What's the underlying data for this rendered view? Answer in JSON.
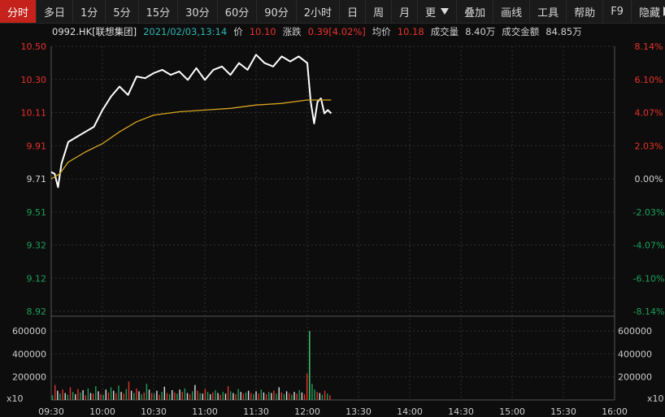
{
  "toolbar": {
    "tabs": [
      "分时",
      "多日",
      "1分",
      "5分",
      "15分",
      "30分",
      "60分",
      "90分",
      "2小时",
      "日",
      "周",
      "月",
      "更",
      "叠加",
      "画线",
      "工具",
      "帮助",
      "F9",
      "隐藏"
    ],
    "active_index": 0
  },
  "info": {
    "code": "0992.HK[联想集团]",
    "datetime": "2021/02/03,13:14",
    "price_label": "价",
    "price_value": "10.10",
    "change_label": "涨跌",
    "change_value": "0.39[4.02%]",
    "avg_label": "均价",
    "avg_value": "10.18",
    "volume_label": "成交量",
    "volume_value": "8.40万",
    "turnover_label": "成交金额",
    "turnover_value": "84.85万"
  },
  "colors": {
    "up": "#e8322a",
    "down": "#1aa05a",
    "price_line": "#ffffff",
    "avg_line": "#d8a521",
    "grid": "#2e2e2e",
    "axis_text": "#cccccc",
    "spike": "#3ccf7a"
  },
  "chart_data": [
    {
      "type": "line",
      "title": "",
      "prev_close": 9.71,
      "ylim": [
        8.92,
        10.5
      ],
      "y_ticks_left": [
        "10.50",
        "10.30",
        "10.11",
        "9.91",
        "9.71",
        "9.51",
        "9.32",
        "9.12",
        "8.92"
      ],
      "y_ticks_right": [
        "8.14%",
        "6.10%",
        "4.07%",
        "2.03%",
        "0.00%",
        "-2.03%",
        "-4.07%",
        "-6.10%",
        "-8.14%"
      ],
      "x_ticks": [
        "09:30",
        "10:00",
        "10:30",
        "11:00",
        "11:30",
        "12:00",
        "13:30",
        "14:00",
        "14:30",
        "15:00",
        "15:30",
        "16:00"
      ],
      "grid": true,
      "series": [
        {
          "name": "",
          "x": [
            "09:30",
            "09:32",
            "09:34",
            "09:36",
            "09:40",
            "09:45",
            "09:50",
            "09:55",
            "10:00",
            "10:05",
            "10:10",
            "10:15",
            "10:20",
            "10:25",
            "10:30",
            "10:35",
            "10:40",
            "10:45",
            "10:50",
            "10:55",
            "11:00",
            "11:05",
            "11:10",
            "11:15",
            "11:20",
            "11:25",
            "11:30",
            "11:35",
            "11:40",
            "11:45",
            "11:50",
            "11:55",
            "12:00",
            "12:02",
            "12:04",
            "12:06",
            "12:08",
            "12:10",
            "12:12",
            "12:14"
          ],
          "values": [
            9.75,
            9.74,
            9.66,
            9.8,
            9.93,
            9.96,
            9.99,
            10.02,
            10.12,
            10.2,
            10.26,
            10.21,
            10.32,
            10.31,
            10.34,
            10.36,
            10.33,
            10.35,
            10.3,
            10.37,
            10.3,
            10.36,
            10.38,
            10.33,
            10.4,
            10.36,
            10.45,
            10.4,
            10.38,
            10.44,
            10.41,
            10.44,
            10.4,
            10.17,
            10.04,
            10.17,
            10.19,
            10.1,
            10.12,
            10.1
          ]
        },
        {
          "name": "",
          "x": [
            "09:30",
            "09:35",
            "09:40",
            "09:50",
            "10:00",
            "10:10",
            "10:20",
            "10:30",
            "10:45",
            "11:00",
            "11:15",
            "11:30",
            "11:45",
            "12:00",
            "12:10",
            "12:14"
          ],
          "values": [
            9.71,
            9.74,
            9.81,
            9.87,
            9.92,
            9.99,
            10.05,
            10.09,
            10.11,
            10.12,
            10.13,
            10.15,
            10.16,
            10.18,
            10.18,
            10.18
          ]
        }
      ]
    },
    {
      "type": "bar",
      "title": "",
      "unit_label": "x10",
      "ylim": [
        0,
        700000
      ],
      "y_ticks": [
        "600000",
        "400000",
        "200000"
      ],
      "x_start": "09:30",
      "x_end": "12:14",
      "volume_bars": [
        40000,
        130000,
        80000,
        55000,
        90000,
        60000,
        45000,
        110000,
        70000,
        50000,
        95000,
        65000,
        85000,
        40000,
        100000,
        60000,
        55000,
        120000,
        75000,
        50000,
        45000,
        90000,
        65000,
        110000,
        80000,
        60000,
        125000,
        70000,
        55000,
        95000,
        160000,
        80000,
        60000,
        100000,
        75000,
        50000,
        65000,
        140000,
        90000,
        60000,
        55000,
        80000,
        45000,
        70000,
        115000,
        60000,
        50000,
        85000,
        65000,
        55000,
        90000,
        70000,
        100000,
        60000,
        50000,
        75000,
        130000,
        80000,
        60000,
        55000,
        95000,
        70000,
        50000,
        65000,
        85000,
        60000,
        45000,
        70000,
        55000,
        120000,
        75000,
        60000,
        50000,
        95000,
        70000,
        55000,
        65000,
        80000,
        60000,
        50000,
        75000,
        55000,
        90000,
        65000,
        50000,
        70000,
        60000,
        80000,
        55000,
        110000,
        65000,
        50000,
        75000,
        60000,
        45000,
        70000,
        55000,
        85000,
        65000,
        50000,
        230000,
        600000,
        140000,
        90000,
        70000,
        60000,
        45000,
        80000,
        55000,
        40000
      ],
      "volume_colors": [
        "g",
        "r",
        "w",
        "g",
        "r",
        "w",
        "g",
        "r",
        "g",
        "w",
        "r",
        "g",
        "w",
        "r",
        "g",
        "w",
        "r",
        "g",
        "w",
        "r",
        "g",
        "w",
        "r",
        "g",
        "w",
        "r",
        "g",
        "w",
        "r",
        "g",
        "r",
        "w",
        "g",
        "r",
        "w",
        "g",
        "r",
        "g",
        "w",
        "r",
        "g",
        "w",
        "r",
        "g",
        "w",
        "r",
        "g",
        "w",
        "r",
        "g",
        "w",
        "r",
        "g",
        "w",
        "r",
        "g",
        "w",
        "r",
        "g",
        "w",
        "r",
        "g",
        "w",
        "r",
        "g",
        "w",
        "r",
        "g",
        "w",
        "r",
        "g",
        "w",
        "r",
        "g",
        "w",
        "r",
        "g",
        "w",
        "r",
        "g",
        "w",
        "r",
        "g",
        "w",
        "r",
        "g",
        "w",
        "r",
        "g",
        "w",
        "r",
        "g",
        "w",
        "r",
        "g",
        "w",
        "r",
        "g",
        "w",
        "r",
        "r",
        "g",
        "g",
        "g",
        "r",
        "w",
        "g",
        "r",
        "g",
        "r"
      ]
    }
  ]
}
